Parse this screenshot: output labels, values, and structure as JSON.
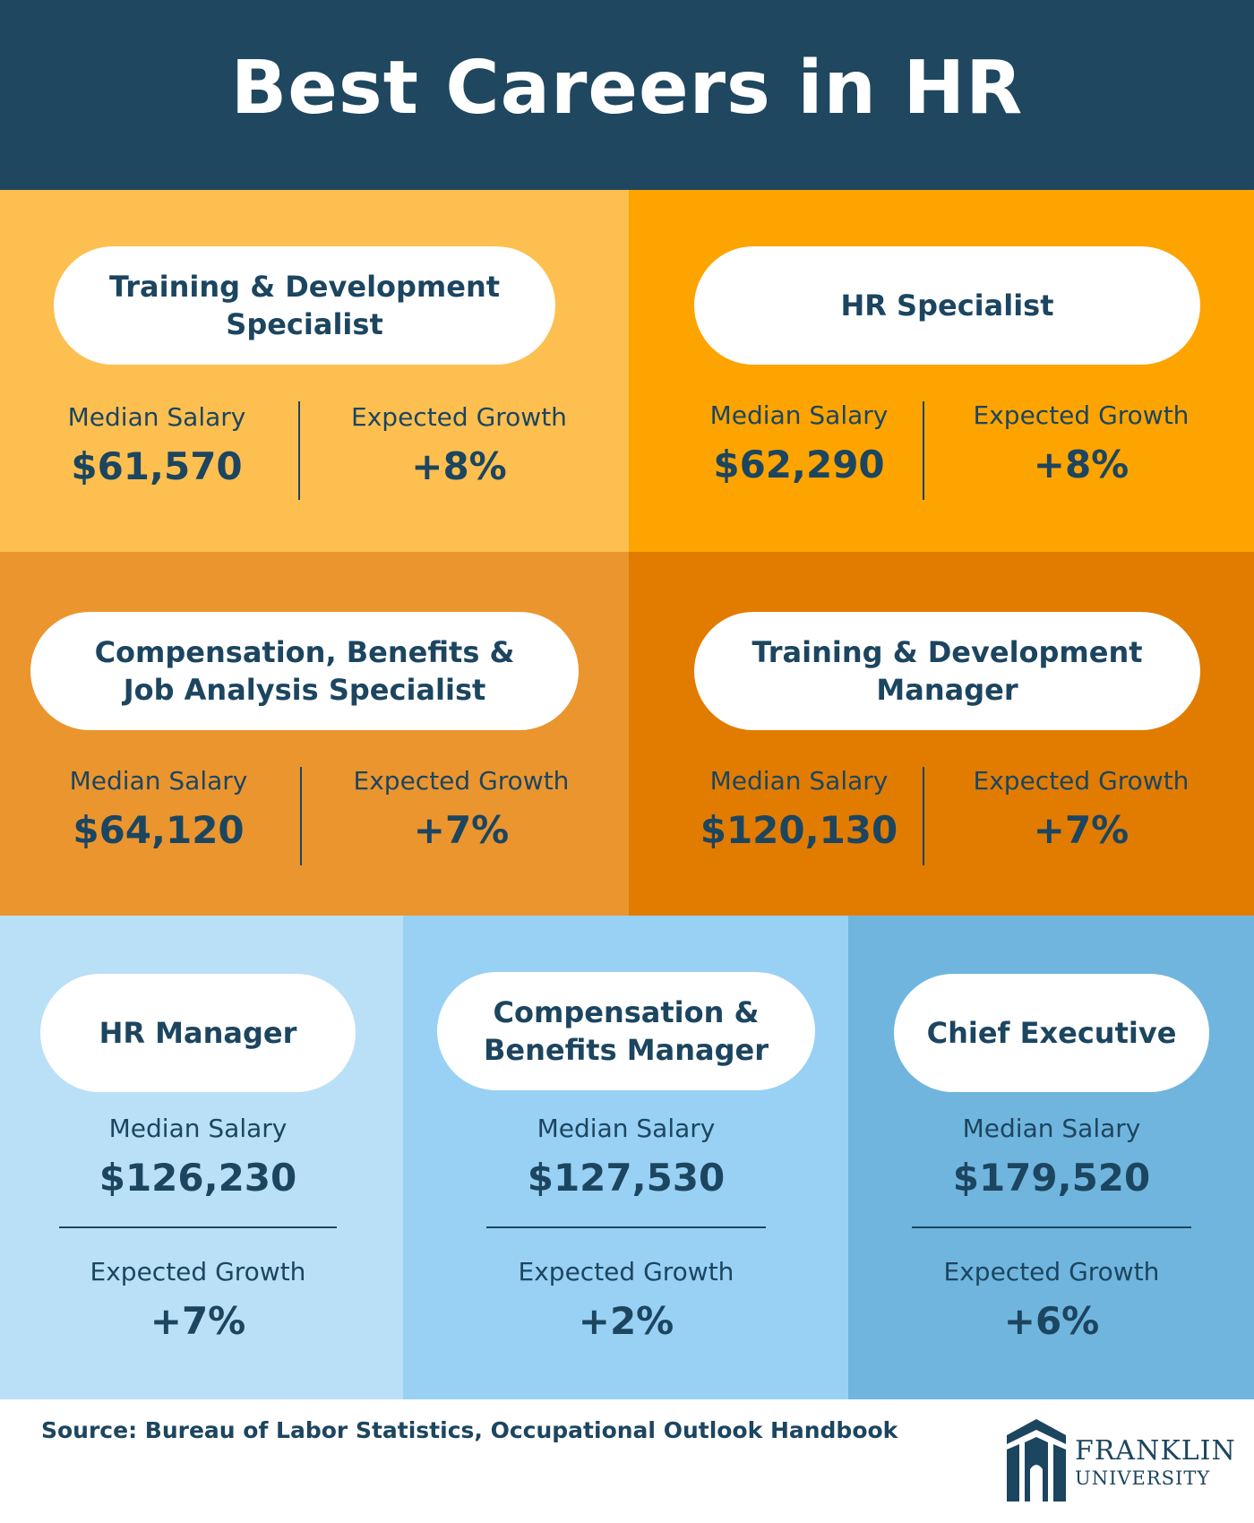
{
  "title": "Best Careers in HR",
  "labels": {
    "salary": "Median Salary",
    "growth": "Expected Growth"
  },
  "careers": [
    {
      "name": "Training & Development\nSpecialist",
      "salary": "$61,570",
      "growth": "+8%"
    },
    {
      "name": "HR Specialist",
      "salary": "$62,290",
      "growth": "+8%"
    },
    {
      "name": "Compensation, Benefits &\nJob Analysis Specialist",
      "salary": "$64,120",
      "growth": "+7%"
    },
    {
      "name": "Training & Development\nManager",
      "salary": "$120,130",
      "growth": "+7%"
    },
    {
      "name": "HR Manager",
      "salary": "$126,230",
      "growth": "+7%"
    },
    {
      "name": "Compensation &\nBenefits Manager",
      "salary": "$127,530",
      "growth": "+2%"
    },
    {
      "name": "Chief Executive",
      "salary": "$179,520",
      "growth": "+6%"
    }
  ],
  "panel_colors": [
    "#fdbf50",
    "#fda400",
    "#eb952e",
    "#e17c00",
    "#b9e0f7",
    "#98d1f3",
    "#70b5dd"
  ],
  "source": "Source: Bureau of Labor Statistics, Occupational Outlook Handbook",
  "logo": {
    "line1": "FRANKLIN",
    "line2": "UNIVERSITY",
    "icon": "franklin-emblem-icon"
  }
}
